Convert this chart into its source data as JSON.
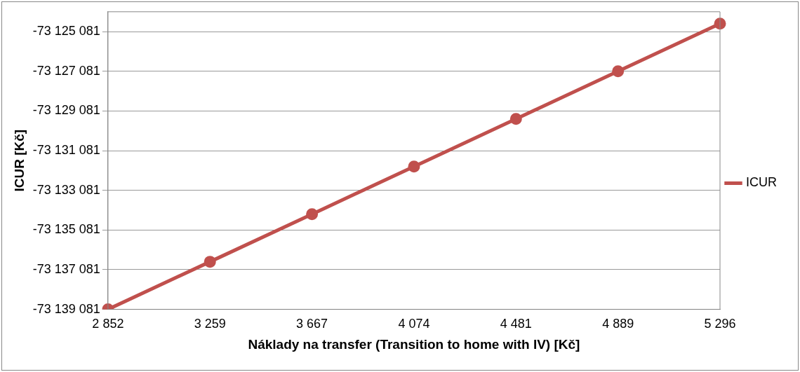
{
  "chart_data": {
    "type": "line",
    "xlabel": "Náklady na transfer (Transition to home with IV) [Kč]",
    "ylabel": "ICUR [Kč]",
    "categories": [
      "2 852",
      "3 259",
      "3 667",
      "4 074",
      "4 481",
      "4 889",
      "5 296"
    ],
    "series": [
      {
        "name": "ICUR",
        "color": "#c0504d",
        "values": [
          -73139081,
          -73136681,
          -73134281,
          -73131881,
          -73129481,
          -73127081,
          -73124681
        ]
      }
    ],
    "ylim": [
      -73139081,
      -73124081
    ],
    "yticks": [
      {
        "value": -73139081,
        "label": "-73 139 081"
      },
      {
        "value": -73137081,
        "label": "-73 137 081"
      },
      {
        "value": -73135081,
        "label": "-73 135 081"
      },
      {
        "value": -73133081,
        "label": "-73 133 081"
      },
      {
        "value": -73131081,
        "label": "-73 131 081"
      },
      {
        "value": -73129081,
        "label": "-73 129 081"
      },
      {
        "value": -73127081,
        "label": "-73 127 081"
      },
      {
        "value": -73125081,
        "label": "-73 125 081"
      }
    ],
    "grid": "y",
    "legend": "right",
    "marker": "circle",
    "line_style": "solid"
  }
}
